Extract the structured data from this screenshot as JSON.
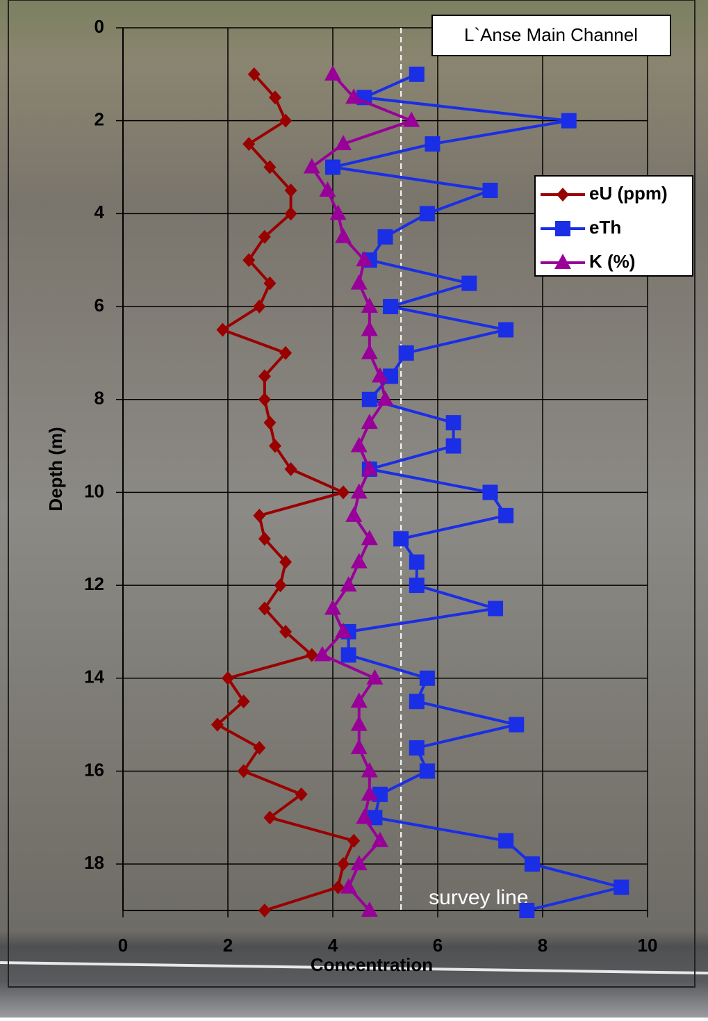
{
  "chart_data": {
    "type": "line",
    "orientation": "vertical-depth",
    "title": "L`Anse Main Channel",
    "xlabel": "Concentration",
    "ylabel": "Depth (m)",
    "xlim": [
      0,
      10
    ],
    "xticks": [
      0,
      2,
      4,
      6,
      8,
      10
    ],
    "ylim": [
      0,
      19
    ],
    "yticks": [
      0,
      2,
      4,
      6,
      8,
      10,
      12,
      14,
      16,
      18
    ],
    "y_reversed": true,
    "grid": true,
    "legend_position": "upper right",
    "y": [
      1,
      1.5,
      2,
      2.5,
      3,
      3.5,
      4,
      4.5,
      5,
      5.5,
      6,
      6.5,
      7,
      7.5,
      8,
      8.5,
      9,
      9.5,
      10,
      10.5,
      11,
      11.5,
      12,
      12.5,
      13,
      13.5,
      14,
      14.5,
      15,
      15.5,
      16,
      16.5,
      17,
      17.5,
      18,
      18.5,
      19
    ],
    "series": [
      {
        "name": "eU (ppm)",
        "color": "#990000",
        "marker": "diamond",
        "values": [
          2.5,
          2.9,
          3.1,
          2.4,
          2.8,
          3.2,
          3.2,
          2.7,
          2.4,
          2.8,
          2.6,
          1.9,
          3.1,
          2.7,
          2.7,
          2.8,
          2.9,
          3.2,
          4.2,
          2.6,
          2.7,
          3.1,
          3.0,
          2.7,
          3.1,
          3.6,
          2.0,
          2.3,
          1.8,
          2.6,
          2.3,
          3.4,
          2.8,
          4.4,
          4.2,
          4.1,
          2.7
        ]
      },
      {
        "name": "eTh",
        "color": "#1a2ee6",
        "marker": "square",
        "values": [
          5.6,
          4.6,
          8.5,
          5.9,
          4.0,
          7.0,
          5.8,
          5.0,
          4.7,
          6.6,
          5.1,
          7.3,
          5.4,
          5.1,
          4.7,
          6.3,
          6.3,
          4.7,
          7.0,
          7.3,
          5.3,
          5.6,
          5.6,
          7.1,
          4.3,
          4.3,
          5.8,
          5.6,
          7.5,
          5.6,
          5.8,
          4.9,
          4.8,
          7.3,
          7.8,
          9.5,
          7.7
        ]
      },
      {
        "name": "K (%)",
        "color": "#990099",
        "marker": "triangle",
        "values": [
          4.0,
          4.4,
          5.5,
          4.2,
          3.6,
          3.9,
          4.1,
          4.2,
          4.6,
          4.5,
          4.7,
          4.7,
          4.7,
          4.9,
          5.0,
          4.7,
          4.5,
          4.7,
          4.5,
          4.4,
          4.7,
          4.5,
          4.3,
          4.0,
          4.2,
          3.8,
          4.8,
          4.5,
          4.5,
          4.5,
          4.7,
          4.7,
          4.6,
          4.9,
          4.5,
          4.3,
          4.7
        ]
      }
    ],
    "reference_line": {
      "x": 5.3,
      "label": "survey line",
      "color": "#ffffff"
    }
  }
}
